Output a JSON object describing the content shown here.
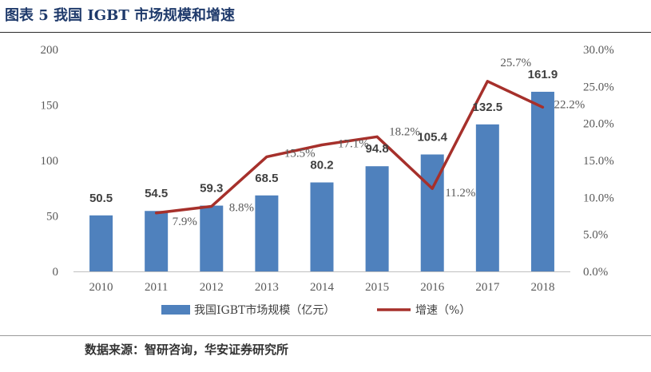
{
  "title": "图表 5 我国 IGBT 市场规模和增速",
  "source": "数据来源：智研咨询，华安证券研究所",
  "colors": {
    "bar": "#4f81bd",
    "line": "#a6302b",
    "axis": "#bfbfbf",
    "text": "#595959"
  },
  "chart_data": {
    "type": "bar",
    "categories": [
      "2010",
      "2011",
      "2012",
      "2013",
      "2014",
      "2015",
      "2016",
      "2017",
      "2018"
    ],
    "series": [
      {
        "name": "我国IGBT市场规模（亿元）",
        "type": "bar",
        "axis": "left",
        "values": [
          50.5,
          54.5,
          59.3,
          68.5,
          80.2,
          94.8,
          105.4,
          132.5,
          161.9
        ],
        "labels": [
          "50.5",
          "54.5",
          "59.3",
          "68.5",
          "80.2",
          "94.8",
          "105.4",
          "132.5",
          "161.9"
        ]
      },
      {
        "name": "增速（%）",
        "type": "line",
        "axis": "right",
        "values": [
          null,
          7.9,
          8.8,
          15.5,
          17.1,
          18.2,
          11.2,
          25.7,
          22.2
        ],
        "labels": [
          "",
          "7.9%",
          "8.8%",
          "15.5%",
          "17.1%",
          "18.2%",
          "11.2%",
          "25.7%",
          "22.2%"
        ]
      }
    ],
    "ylim_left": [
      0,
      200
    ],
    "yticks_left": [
      "0",
      "50",
      "100",
      "150",
      "200"
    ],
    "ylim_right": [
      0,
      30
    ],
    "yticks_right": [
      "0.0%",
      "5.0%",
      "10.0%",
      "15.0%",
      "20.0%",
      "25.0%",
      "30.0%"
    ],
    "grid": false,
    "legend": "bottom"
  }
}
